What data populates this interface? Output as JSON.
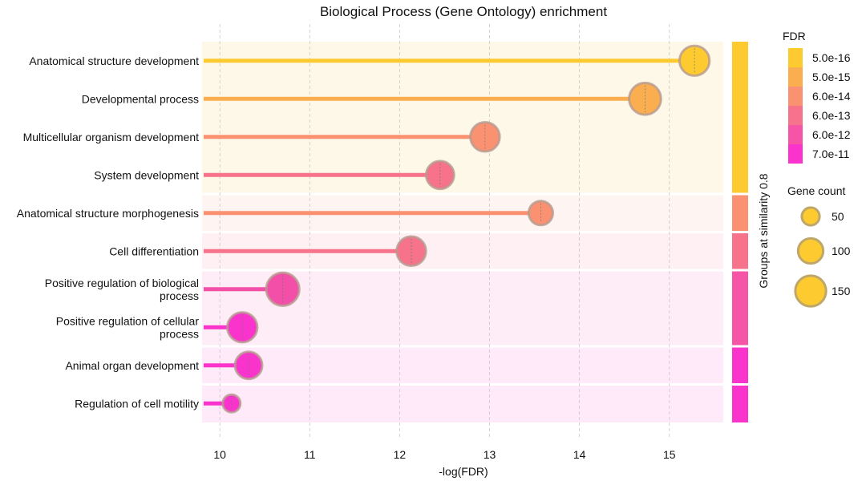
{
  "chart_data": {
    "type": "lollipop",
    "title": "Biological Process (Gene Ontology) enrichment",
    "xlabel": "-log(FDR)",
    "xlim": [
      9.82,
      15.6
    ],
    "xticks": [
      10,
      11,
      12,
      13,
      14,
      15
    ],
    "grid_x": true,
    "group_axis_label": "Groups at similarity 0.8",
    "categories": [
      "Anatomical structure development",
      "Developmental process",
      "Multicellular organism development",
      "System development",
      "Anatomical structure morphogenesis",
      "Cell differentiation",
      "Positive regulation of biological process",
      "Positive regulation of cellular process",
      "Animal organ development",
      "Regulation of cell motility"
    ],
    "category_lines": [
      [
        "Anatomical structure development"
      ],
      [
        "Developmental process"
      ],
      [
        "Multicellular organism development"
      ],
      [
        "System development"
      ],
      [
        "Anatomical structure morphogenesis"
      ],
      [
        "Cell differentiation"
      ],
      [
        "Positive regulation of biological",
        "process"
      ],
      [
        "Positive regulation of cellular",
        "process"
      ],
      [
        "Animal organ development"
      ],
      [
        "Regulation of cell motility"
      ]
    ],
    "values": [
      15.28,
      14.73,
      12.95,
      12.45,
      13.57,
      12.13,
      10.7,
      10.25,
      10.32,
      10.13
    ],
    "gene_count": [
      115,
      130,
      110,
      100,
      75,
      110,
      140,
      115,
      95,
      40
    ],
    "fdr_color": [
      "#fdca2f",
      "#fbae50",
      "#fa9171",
      "#f7728b",
      "#fa9171",
      "#f7728b",
      "#f44fa8",
      "#fa33cc",
      "#fa33cc",
      "#fa33cc"
    ],
    "groups": [
      {
        "rows": [
          0,
          1,
          2,
          3
        ],
        "bg": "#fef8e9",
        "bar_color": "#fdca2f"
      },
      {
        "rows": [
          4
        ],
        "bg": "#fef4f1",
        "bar_color": "#fa9171"
      },
      {
        "rows": [
          5
        ],
        "bg": "#fef0f3",
        "bar_color": "#f7728b"
      },
      {
        "rows": [
          6,
          7
        ],
        "bg": "#feedf6",
        "bar_color": "#f655a7"
      },
      {
        "rows": [
          8
        ],
        "bg": "#feeaf9",
        "bar_color": "#fa33cc"
      },
      {
        "rows": [
          9
        ],
        "bg": "#feeaf9",
        "bar_color": "#fa33cc"
      }
    ],
    "fdr_legend": {
      "title": "FDR",
      "labels": [
        "5.0e-16",
        "5.0e-15",
        "6.0e-14",
        "6.0e-13",
        "6.0e-12",
        "7.0e-11"
      ],
      "colors": [
        "#fdca2f",
        "#fbae50",
        "#fa9171",
        "#f7728b",
        "#f655a7",
        "#fa33cc"
      ]
    },
    "size_legend": {
      "title": "Gene count",
      "counts": [
        50,
        100,
        150
      ],
      "color": "#fdca2f"
    }
  }
}
